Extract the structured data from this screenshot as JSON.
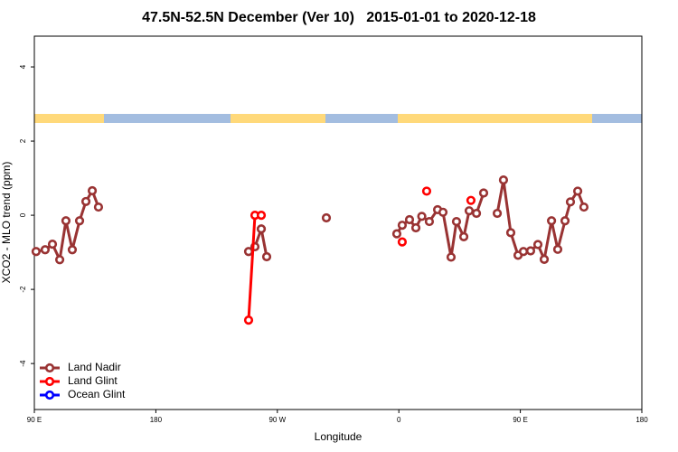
{
  "chart_data": {
    "type": "line",
    "title": "47.5N-52.5N December (Ver 10)   2015-01-01 to 2020-12-18",
    "xlabel": "Longitude",
    "ylabel": "XCO2 - MLO trend (ppm)",
    "xlim": [
      90,
      540
    ],
    "xticks": [
      {
        "value": 90,
        "label": "90 E"
      },
      {
        "value": 180,
        "label": "180"
      },
      {
        "value": 270,
        "label": "90 W"
      },
      {
        "value": 360,
        "label": "0"
      },
      {
        "value": 450,
        "label": "90 E"
      },
      {
        "value": 540,
        "label": "180"
      }
    ],
    "ylim": [
      -5.24,
      4.83
    ],
    "yticks": [
      -4,
      -2,
      0,
      2,
      4
    ],
    "legend": "bottom-left",
    "series": [
      {
        "name": "Land Nadir",
        "color": "#993333",
        "x": [
          91.3,
          98.0,
          103.4,
          108.8,
          113.4,
          118.1,
          123.5,
          128.2,
          132.9,
          137.5,
          null,
          248.7,
          253.4,
          258.1,
          262.1,
          null,
          306.3,
          null,
          358.5,
          362.5,
          367.9,
          372.6,
          377.0,
          382.6,
          388.7,
          392.7,
          398.7,
          402.7,
          408.1,
          412.1,
          417.5,
          422.8,
          null,
          432.9,
          437.5,
          442.9,
          448.3,
          452.3,
          457.6,
          463.0,
          467.7,
          473.1,
          477.7,
          483.1,
          487.1,
          492.5,
          497.1
        ],
        "values": [
          -0.98,
          -0.93,
          -0.78,
          -1.2,
          -0.15,
          -0.93,
          -0.15,
          0.37,
          0.66,
          0.22,
          null,
          -0.98,
          -0.85,
          -0.37,
          -1.12,
          null,
          -0.07,
          null,
          -0.5,
          -0.27,
          -0.12,
          -0.34,
          -0.03,
          -0.17,
          0.15,
          0.08,
          -1.13,
          -0.17,
          -0.58,
          0.12,
          0.05,
          0.6,
          null,
          0.05,
          0.95,
          -0.47,
          -1.08,
          -0.98,
          -0.96,
          -0.79,
          -1.19,
          -0.15,
          -0.92,
          -0.15,
          0.36,
          0.65,
          0.22
        ]
      },
      {
        "name": "Land Glint",
        "color": "#ff0000",
        "x": [
          248.7,
          253.4,
          258.1,
          null,
          362.5,
          null,
          380.6,
          null,
          413.4
        ],
        "values": [
          -2.83,
          0.0,
          0.0,
          null,
          -0.72,
          null,
          0.65,
          null,
          0.4
        ]
      },
      {
        "name": "Ocean Glint",
        "color": "#0000ff",
        "x": [],
        "values": []
      }
    ]
  }
}
